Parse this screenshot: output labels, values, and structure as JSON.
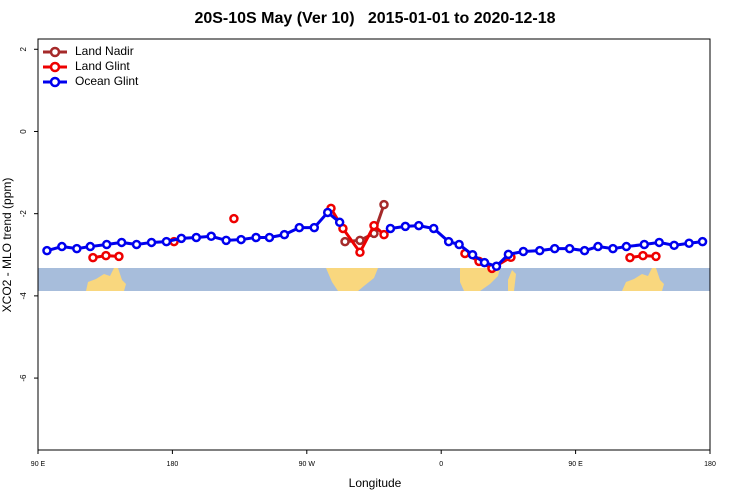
{
  "chart_data": {
    "type": "line",
    "title": "20S-10S May (Ver 10)   2015-01-01 to 2020-12-18",
    "x_label": "Longitude",
    "y_label": "XCO2 - MLO trend (ppm)",
    "xlim": [
      90,
      540
    ],
    "ylim": [
      -7.75,
      2.25
    ],
    "xticks": [
      {
        "value": 90,
        "label": "90 E"
      },
      {
        "value": 180,
        "label": "180"
      },
      {
        "value": 270,
        "label": "90 W"
      },
      {
        "value": 360,
        "label": "0"
      },
      {
        "value": 450,
        "label": "90 E"
      },
      {
        "value": 540,
        "label": "180"
      }
    ],
    "yticks": [
      -6,
      -4,
      -2,
      0,
      2
    ],
    "legend": "top-left",
    "series": [
      {
        "name": "Land Nadir",
        "color": "#a52a2a",
        "x": [
          295.6,
          305.6,
          315.0,
          321.7
        ],
        "values": [
          -2.68,
          -2.65,
          -2.48,
          -1.78
        ]
      },
      {
        "name": "Land Glint",
        "color": "#ee0000",
        "x": [
          126.8,
          135.5,
          144.2,
          null,
          181.1,
          null,
          221.2,
          null,
          286.2,
          294.2,
          305.6,
          315.0,
          321.7,
          null,
          375.9,
          385.3,
          394.0,
          406.7,
          null,
          486.4,
          495.1,
          503.8
        ],
        "values": [
          -3.07,
          -3.02,
          -3.04,
          null,
          -2.68,
          null,
          -2.12,
          null,
          -1.87,
          -2.36,
          -2.94,
          -2.29,
          -2.51,
          null,
          -2.97,
          -3.16,
          -3.33,
          -3.06,
          null,
          -3.07,
          -3.02,
          -3.04
        ]
      },
      {
        "name": "Ocean Glint",
        "color": "#0000ee",
        "x": [
          96,
          106,
          116,
          125,
          136,
          146,
          156,
          166,
          176,
          186,
          196,
          206,
          216,
          226,
          236,
          245,
          255,
          265,
          275,
          284,
          292,
          null,
          326,
          336,
          345,
          355,
          365,
          372,
          381,
          389,
          397,
          405,
          415,
          426,
          436,
          446,
          456,
          465,
          475,
          484,
          496,
          506,
          516,
          526,
          535
        ],
        "values": [
          -2.9,
          -2.8,
          -2.85,
          -2.8,
          -2.75,
          -2.7,
          -2.75,
          -2.7,
          -2.68,
          -2.6,
          -2.58,
          -2.55,
          -2.65,
          -2.63,
          -2.58,
          -2.58,
          -2.51,
          -2.34,
          -2.34,
          -1.97,
          -2.21,
          null,
          -2.36,
          -2.31,
          -2.29,
          -2.36,
          -2.68,
          -2.75,
          -3.0,
          -3.19,
          -3.28,
          -2.99,
          -2.92,
          -2.9,
          -2.85,
          -2.85,
          -2.9,
          -2.8,
          -2.85,
          -2.8,
          -2.75,
          -2.7,
          -2.77,
          -2.72,
          -2.68
        ]
      }
    ]
  }
}
